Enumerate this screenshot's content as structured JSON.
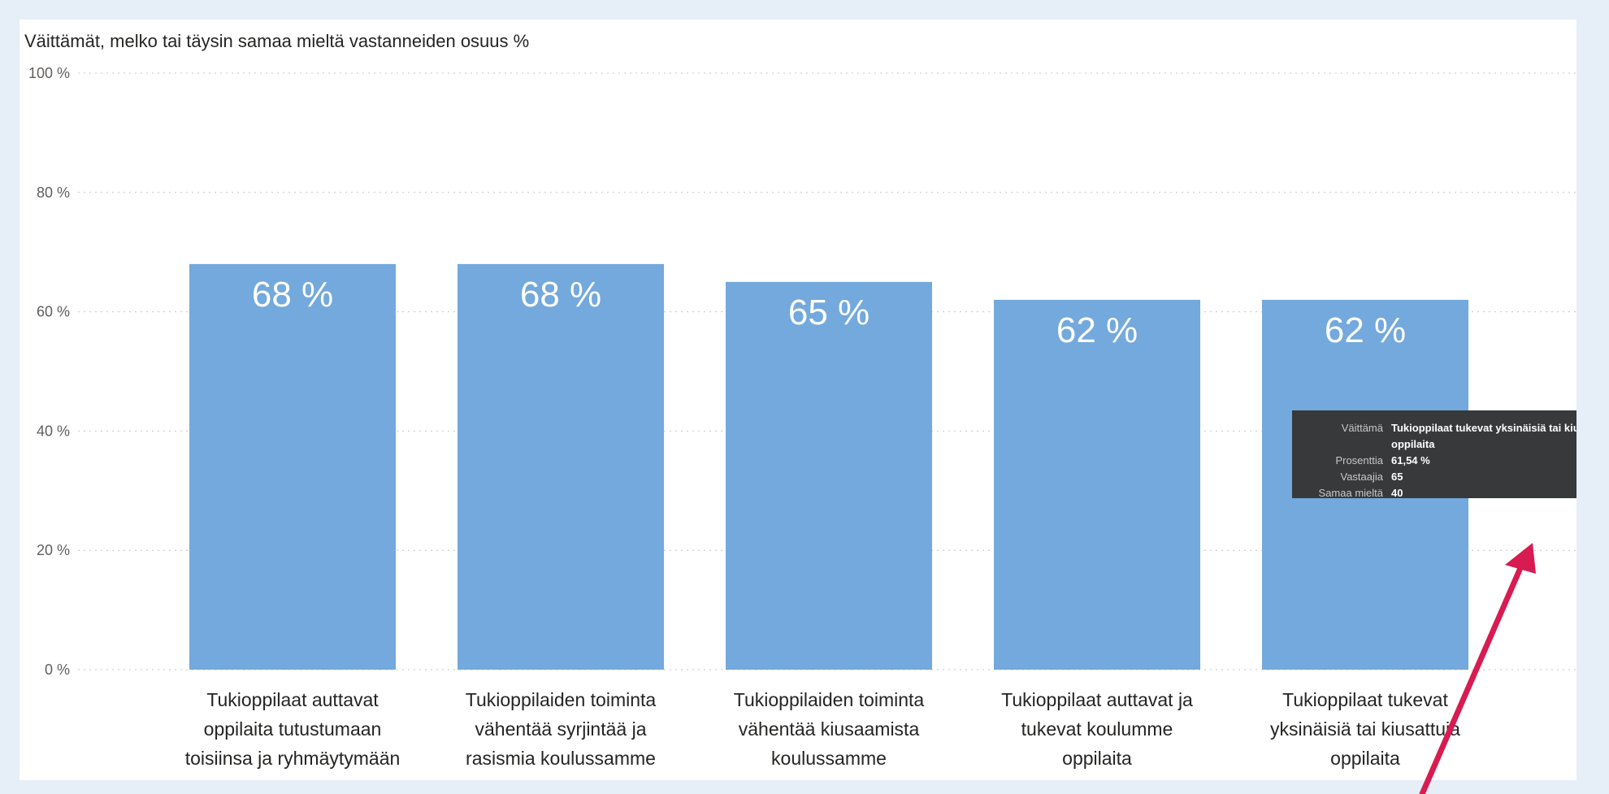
{
  "chart_data": {
    "type": "bar",
    "title": "Väittämät, melko tai täysin samaa mieltä vastanneiden osuus %",
    "categories": [
      [
        "Tukioppilaat auttavat",
        "oppilaita tutustumaan",
        "toisiinsa ja ryhmäytymään"
      ],
      [
        "Tukioppilaiden toiminta",
        "vähentää syrjintää ja",
        "rasismia koulussamme"
      ],
      [
        "Tukioppilaiden toiminta",
        "vähentää kiusaamista",
        "koulussamme"
      ],
      [
        "Tukioppilaat auttavat ja",
        "tukevat koulumme",
        "oppilaita"
      ],
      [
        "Tukioppilaat tukevat",
        "yksinäisiä tai kiusattuja",
        "oppilaita"
      ]
    ],
    "values": [
      68,
      68,
      65,
      62,
      62
    ],
    "data_labels": [
      "68 %",
      "68 %",
      "65 %",
      "62 %",
      "62 %"
    ],
    "yticks": [
      0,
      20,
      40,
      60,
      80,
      100
    ],
    "ytick_labels": [
      "0 %",
      "20 %",
      "40 %",
      "60 %",
      "80 %",
      "100 %"
    ],
    "ylim": [
      0,
      100
    ],
    "grid": true,
    "bar_color": "#73a9dc"
  },
  "tooltip": {
    "rows": [
      {
        "label": "Väittämä",
        "value": "Tukioppilaat tukevat yksinäisiä tai kiusattuja oppilaita"
      },
      {
        "label": "Prosenttia",
        "value": "61,54 %"
      },
      {
        "label": "Vastaajia",
        "value": "65"
      },
      {
        "label": "Samaa mieltä",
        "value": "40"
      }
    ]
  },
  "annotation": {
    "arrow_color": "#d81b50"
  }
}
